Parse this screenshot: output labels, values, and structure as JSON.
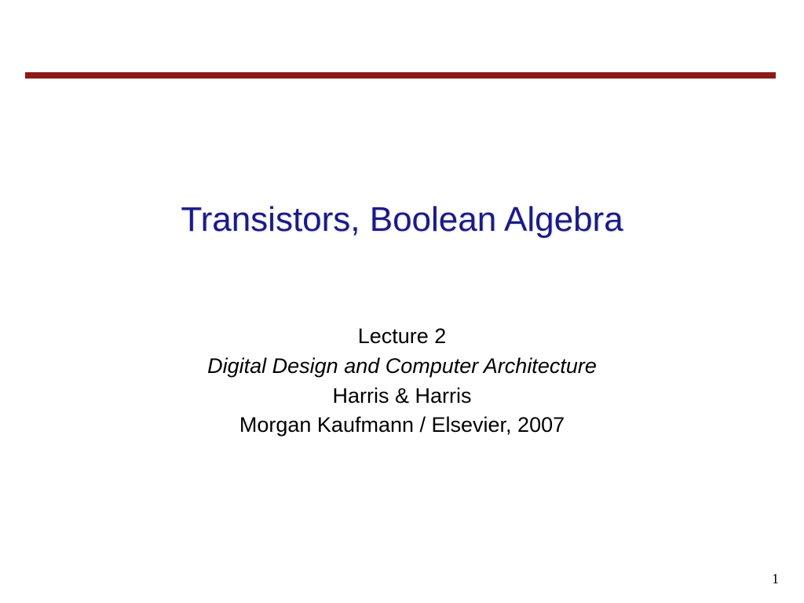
{
  "slide": {
    "title": "Transistors, Boolean Algebra",
    "lecture_label": "Lecture 2",
    "course_title": "Digital Design and Computer Architecture",
    "authors": "Harris & Harris",
    "publisher": "Morgan Kaufmann / Elsevier, 2007",
    "page_number": "1",
    "rule_color": "#8b1a1a",
    "title_color": "#1a1a8b",
    "background_color": "#ffffff",
    "title_fontsize": 44,
    "body_fontsize": 27
  }
}
